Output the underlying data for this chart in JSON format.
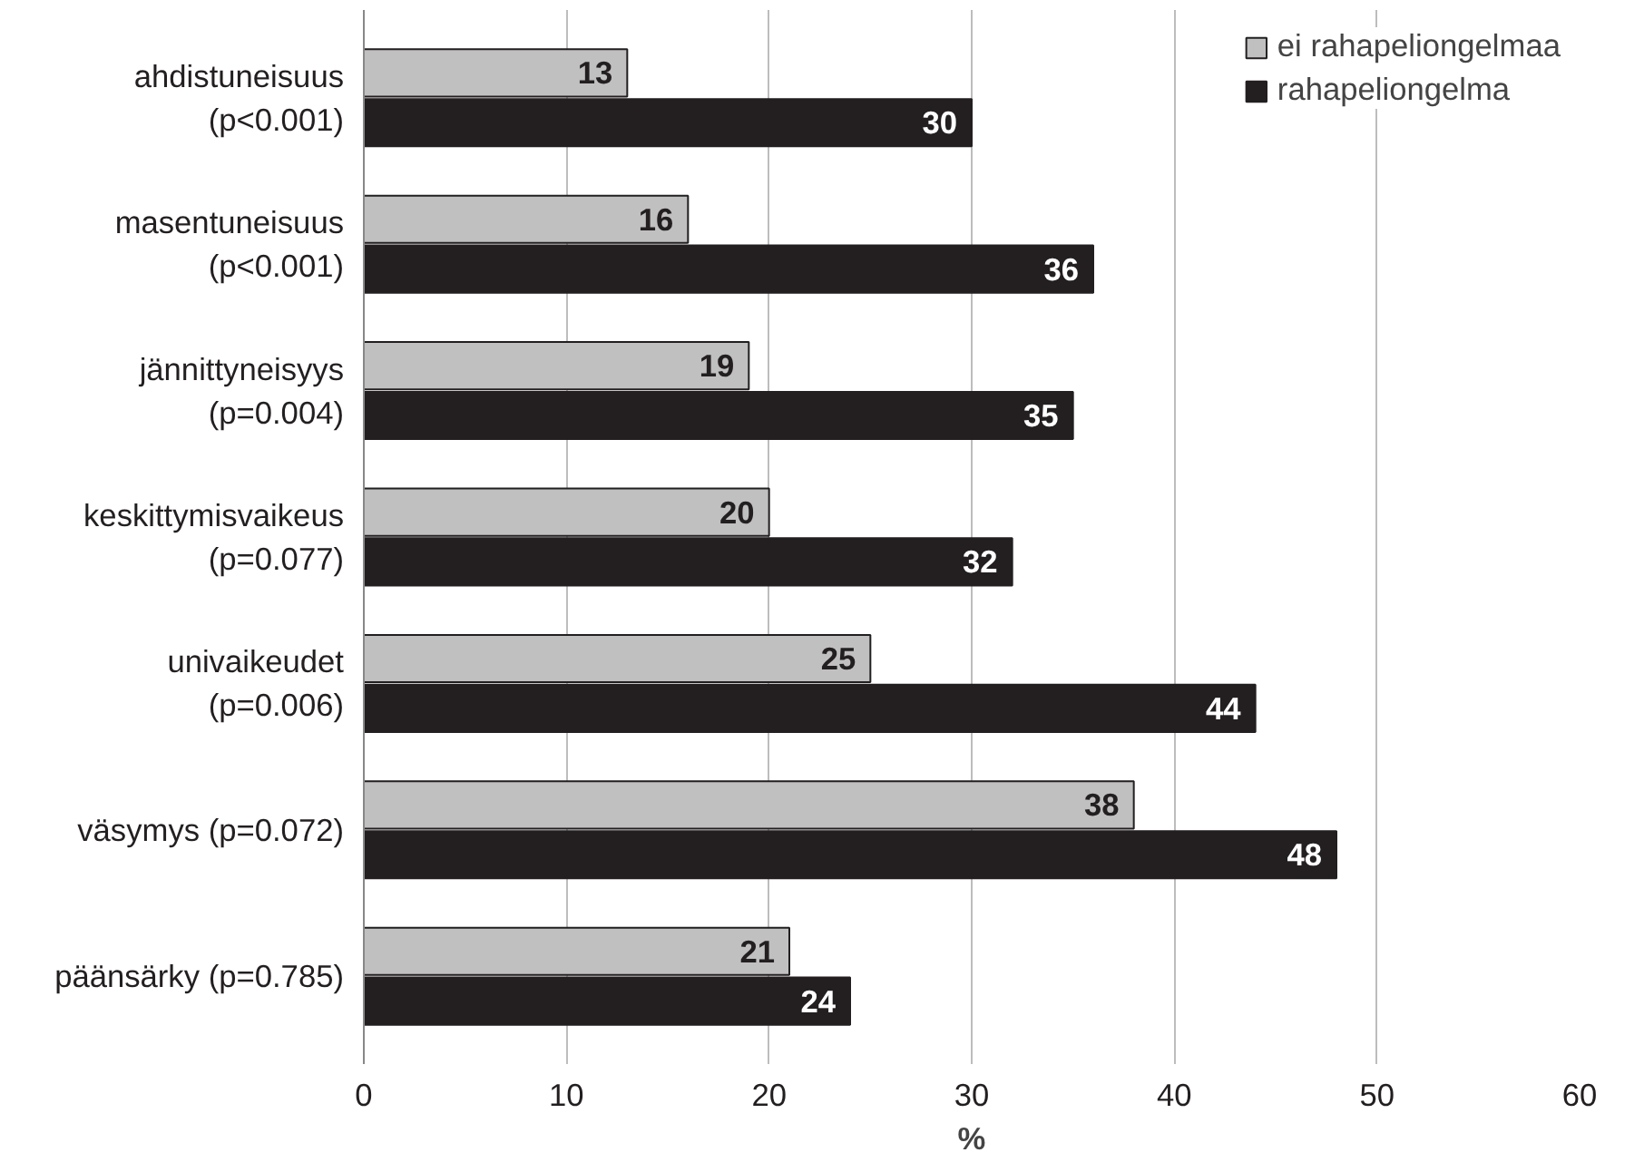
{
  "chart_data": {
    "type": "bar",
    "orientation": "horizontal",
    "xlabel": "%",
    "categories": [
      "ahdistuneisuus\n(p<0.001)",
      "masentuneisuus\n(p<0.001)",
      "jännittyneisyys\n(p=0.004)",
      "keskittymisvaikeus\n(p=0.077)",
      "univaikeudet\n(p=0.006)",
      "väsymys (p=0.072)",
      "päänsärky (p=0.785)"
    ],
    "series": [
      {
        "name": "ei rahapeliongelmaa",
        "color": "#c0c0c0",
        "values": [
          13,
          16,
          19,
          20,
          25,
          38,
          21
        ]
      },
      {
        "name": "rahapeliongelma",
        "color": "#231f20",
        "values": [
          30,
          36,
          35,
          32,
          44,
          48,
          24
        ]
      }
    ],
    "xlim": [
      0,
      60
    ],
    "xticks": [
      0,
      10,
      20,
      30,
      40,
      50,
      60
    ],
    "grid": "x",
    "legend": "top right",
    "data_labels": true
  }
}
